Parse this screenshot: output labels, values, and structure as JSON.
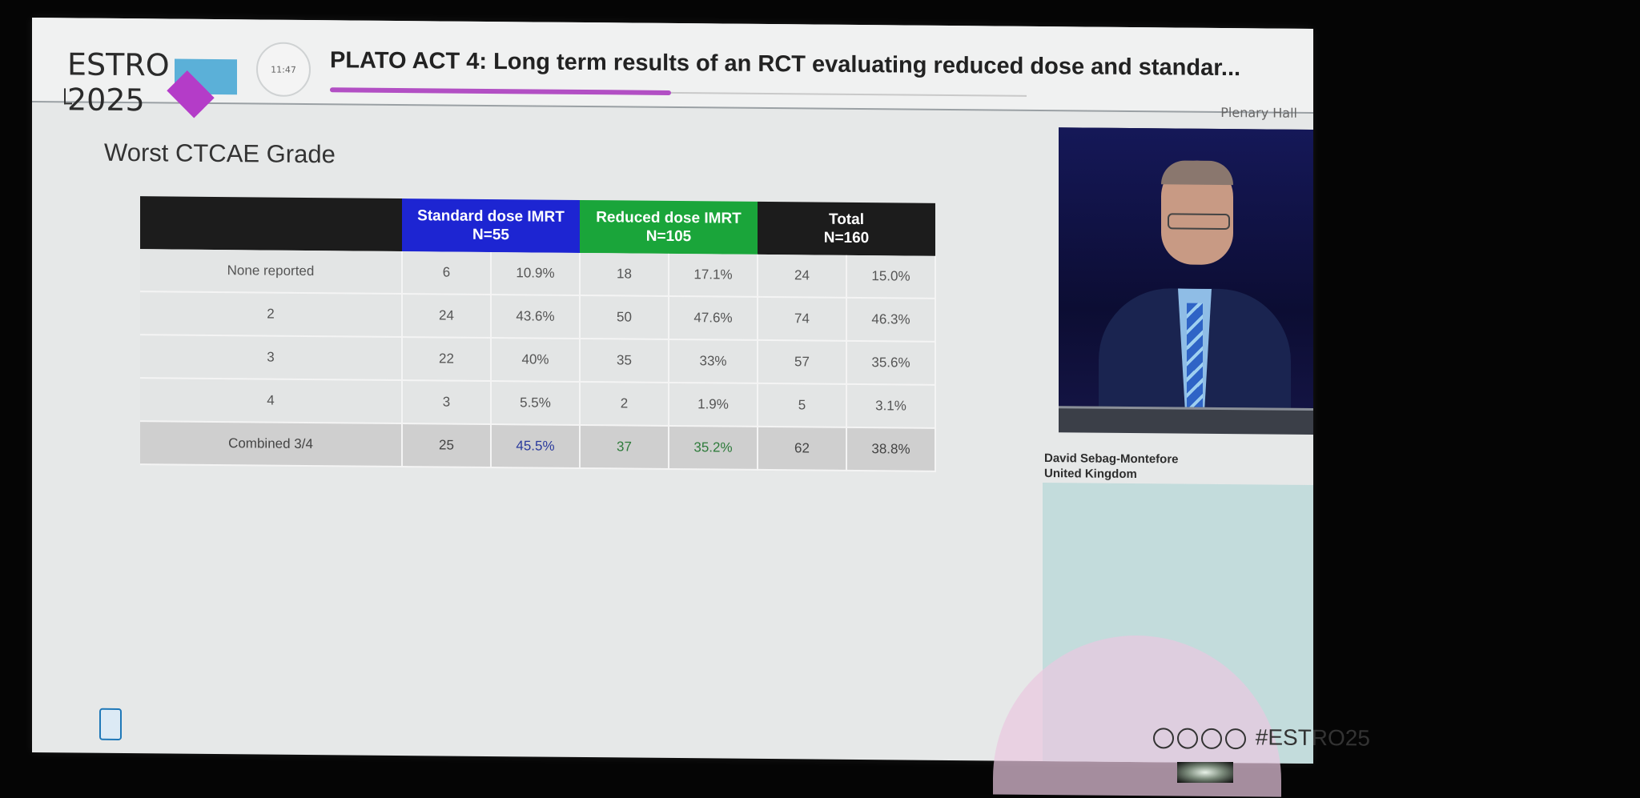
{
  "event": {
    "logo_text": "ESTRO 2025",
    "clock": "11:47",
    "hall": "Plenary Hall",
    "hashtag": "#ESTRO25"
  },
  "session": {
    "title": "PLATO ACT 4: Long term results of an RCT evaluating reduced dose and standar...",
    "progress": 0.49
  },
  "slide": {
    "title": "Worst CTCAE Grade",
    "headers": [
      {
        "line1": "Standard dose IMRT",
        "line2": "N=55"
      },
      {
        "line1": "Reduced dose IMRT",
        "line2": "N=105"
      },
      {
        "line1": "Total",
        "line2": "N=160"
      }
    ],
    "rows": [
      {
        "label": "None reported",
        "cells": [
          "6",
          "10.9%",
          "18",
          "17.1%",
          "24",
          "15.0%"
        ]
      },
      {
        "label": "2",
        "cells": [
          "24",
          "43.6%",
          "50",
          "47.6%",
          "74",
          "46.3%"
        ]
      },
      {
        "label": "3",
        "cells": [
          "22",
          "40%",
          "35",
          "33%",
          "57",
          "35.6%"
        ]
      },
      {
        "label": "4",
        "cells": [
          "3",
          "5.5%",
          "2",
          "1.9%",
          "5",
          "3.1%"
        ]
      },
      {
        "label": "Combined 3/4",
        "cells": [
          "25",
          "45.5%",
          "37",
          "35.2%",
          "62",
          "38.8%"
        ]
      }
    ]
  },
  "speaker": {
    "name": "David Sebag-Montefore",
    "country": "United Kingdom"
  },
  "colors": {
    "standard": "#1d25d2",
    "reduced": "#1aa53a",
    "accent": "#b24fc4"
  }
}
